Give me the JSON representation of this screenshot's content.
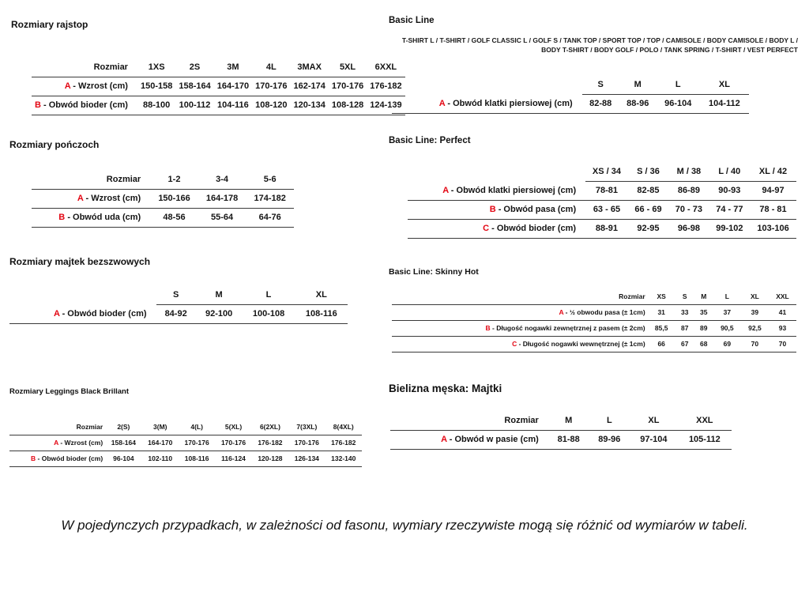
{
  "colors": {
    "letter_red": "#e30613"
  },
  "note": "W pojedynczych przypadkach, w zależności od fasonu, wymiary rzeczywiste mogą się różnić od wymiarów w tabeli.",
  "tables": [
    {
      "title": "Rozmiary rajstop",
      "header_label": "Rozmiar",
      "columns": [
        "1XS",
        "2S",
        "3M",
        "4L",
        "3MAX",
        "5XL",
        "6XXL"
      ],
      "rows": [
        {
          "letter": "A",
          "label": "- Wzrost (cm)",
          "values": [
            "150-158",
            "158-164",
            "164-170",
            "170-176",
            "162-174",
            "170-176",
            "176-182"
          ]
        },
        {
          "letter": "B",
          "label": "- Obwód bioder (cm)",
          "values": [
            "88-100",
            "100-112",
            "104-116",
            "108-120",
            "120-134",
            "108-128",
            "124-139"
          ]
        }
      ]
    },
    {
      "title": "Rozmiary pończoch",
      "header_label": "Rozmiar",
      "columns": [
        "1-2",
        "3-4",
        "5-6"
      ],
      "rows": [
        {
          "letter": "A",
          "label": "- Wzrost (cm)",
          "values": [
            "150-166",
            "164-178",
            "174-182"
          ]
        },
        {
          "letter": "B",
          "label": "- Obwód uda (cm)",
          "values": [
            "48-56",
            "55-64",
            "64-76"
          ]
        }
      ]
    },
    {
      "title": "Rozmiary majtek bezszwowych",
      "header_label": "",
      "columns": [
        "S",
        "M",
        "L",
        "XL"
      ],
      "rows": [
        {
          "letter": "A",
          "label": "- Obwód bioder (cm)",
          "values": [
            "84-92",
            "92-100",
            "100-108",
            "108-116"
          ]
        }
      ]
    },
    {
      "title": "Rozmiary Leggings Black Brillant",
      "header_label": "Rozmiar",
      "columns": [
        "2(S)",
        "3(M)",
        "4(L)",
        "5(XL)",
        "6(2XL)",
        "7(3XL)",
        "8(4XL)"
      ],
      "rows": [
        {
          "letter": "A",
          "label": "- Wzrost (cm)",
          "values": [
            "158-164",
            "164-170",
            "170-176",
            "170-176",
            "176-182",
            "170-176",
            "176-182"
          ]
        },
        {
          "letter": "B",
          "label": "- Obwód bioder (cm)",
          "values": [
            "96-104",
            "102-110",
            "108-116",
            "116-124",
            "120-128",
            "126-134",
            "132-140"
          ]
        }
      ]
    },
    {
      "title": "Basic Line",
      "subtitle": "T-SHIRT L / T-SHIRT / GOLF CLASSIC L / GOLF S / TANK TOP / SPORT TOP / TOP / CAMISOLE / BODY CAMISOLE / BODY L / BODY T-SHIRT / BODY GOLF / POLO / TANK SPRING / T-SHIRT / VEST PERFECT",
      "header_label": "",
      "columns": [
        "S",
        "M",
        "L",
        "XL"
      ],
      "rows": [
        {
          "letter": "A",
          "label": "- Obwód klatki piersiowej (cm)",
          "values": [
            "82-88",
            "88-96",
            "96-104",
            "104-112"
          ]
        }
      ]
    },
    {
      "title": "Basic Line: Perfect",
      "header_label": "",
      "columns": [
        "XS / 34",
        "S / 36",
        "M / 38",
        "L / 40",
        "XL / 42"
      ],
      "rows": [
        {
          "letter": "A",
          "label": "- Obwód klatki piersiowej (cm)",
          "values": [
            "78-81",
            "82-85",
            "86-89",
            "90-93",
            "94-97"
          ]
        },
        {
          "letter": "B",
          "label": "- Obwód pasa (cm)",
          "values": [
            "63 - 65",
            "66 - 69",
            "70 - 73",
            "74 - 77",
            "78 - 81"
          ]
        },
        {
          "letter": "C",
          "label": "- Obwód bioder (cm)",
          "values": [
            "88-91",
            "92-95",
            "96-98",
            "99-102",
            "103-106"
          ]
        }
      ]
    },
    {
      "title": "Basic Line: Skinny Hot",
      "header_label": "Rozmiar",
      "columns": [
        "XS",
        "S",
        "M",
        "L",
        "XL",
        "XXL"
      ],
      "rows": [
        {
          "letter": "A",
          "label": "- ½ obwodu pasa (± 1cm)",
          "values": [
            "31",
            "33",
            "35",
            "37",
            "39",
            "41"
          ]
        },
        {
          "letter": "B",
          "label": "- Długość nogawki zewnętrznej z pasem (± 2cm)",
          "values": [
            "85,5",
            "87",
            "89",
            "90,5",
            "92,5",
            "93"
          ]
        },
        {
          "letter": "C",
          "label": "- Długość nogawki wewnętrznej (± 1cm)",
          "values": [
            "66",
            "67",
            "68",
            "69",
            "70",
            "70"
          ]
        }
      ]
    },
    {
      "title": "Bielizna męska: Majtki",
      "header_label": "Rozmiar",
      "columns": [
        "M",
        "L",
        "XL",
        "XXL"
      ],
      "rows": [
        {
          "letter": "A",
          "label": "- Obwód w pasie (cm)",
          "values": [
            "81-88",
            "89-96",
            "97-104",
            "105-112"
          ]
        }
      ]
    }
  ]
}
